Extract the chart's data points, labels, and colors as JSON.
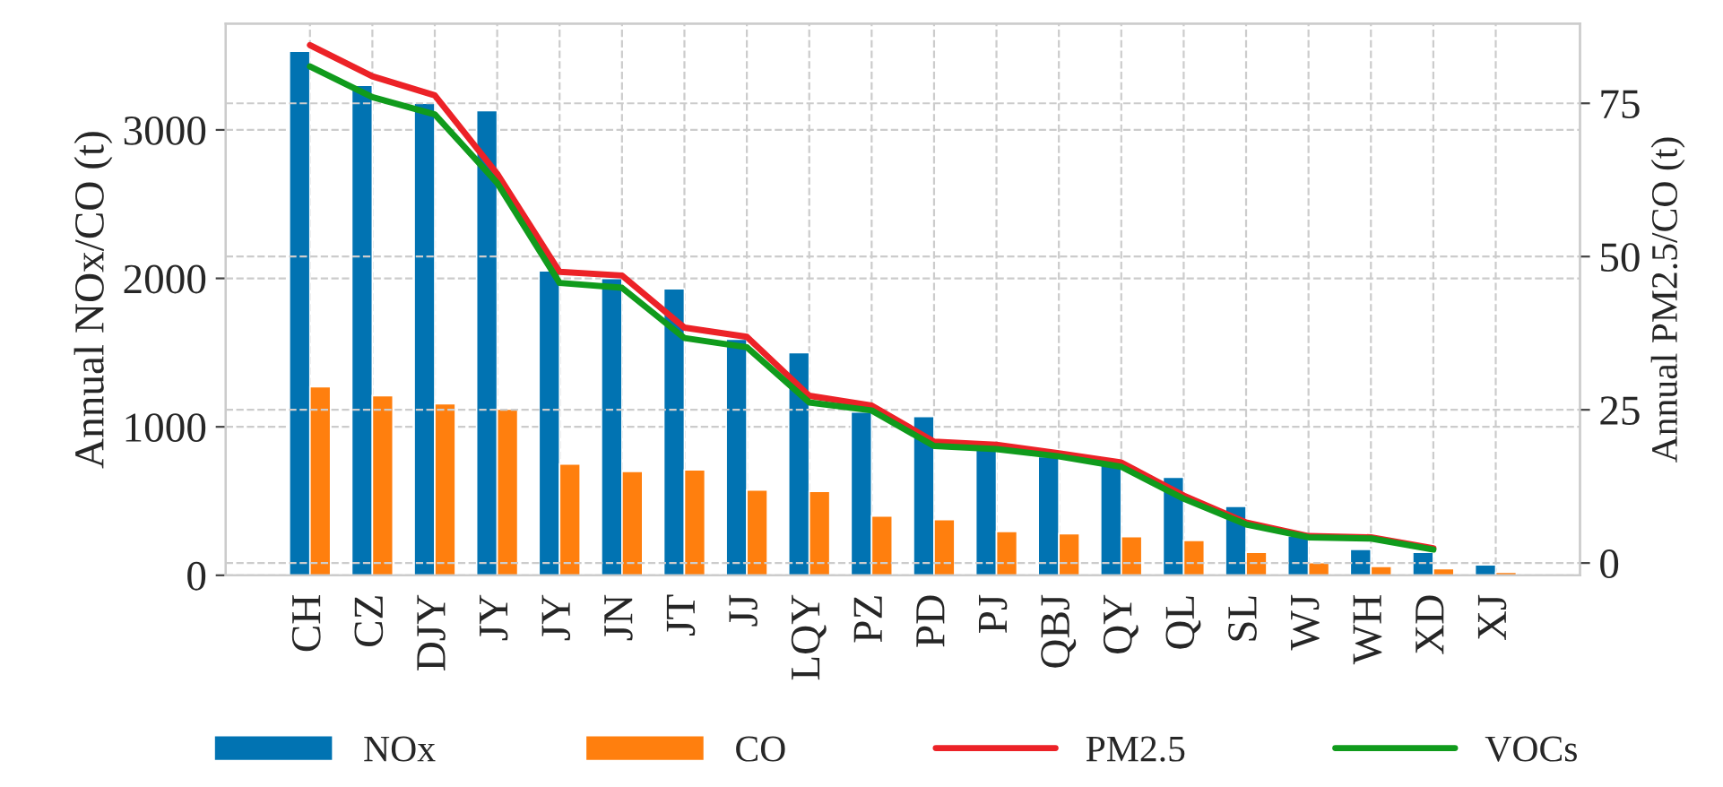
{
  "chart_data": {
    "type": "bar",
    "categories": [
      "CH",
      "CZ",
      "DJY",
      "JY",
      "JY",
      "JN",
      "JT",
      "JJ",
      "LQY",
      "PZ",
      "PD",
      "PJ",
      "QBJ",
      "QY",
      "QL",
      "SL",
      "WJ",
      "WH",
      "XD",
      "XJ"
    ],
    "series": [
      {
        "name": "NOx",
        "color": "#0173b2",
        "values": [
          3530,
          3300,
          3180,
          3130,
          2050,
          2000,
          1930,
          1590,
          1500,
          1100,
          1070,
          850,
          800,
          740,
          660,
          465,
          265,
          175,
          155,
          70
        ]
      },
      {
        "name": "CO",
        "color": "#ff7f0e",
        "values": [
          1270,
          1210,
          1155,
          1120,
          750,
          700,
          710,
          575,
          565,
          400,
          375,
          295,
          280,
          260,
          235,
          155,
          85,
          60,
          45,
          20
        ]
      },
      {
        "name": "PM2.5",
        "type": "line",
        "axis": "y2",
        "color": "#ec2227",
        "values": [
          84.5,
          79.4,
          76.3,
          63.5,
          47.5,
          46.9,
          38.4,
          36.9,
          27.3,
          25.7,
          19.8,
          19.3,
          17.9,
          16.4,
          11.0,
          6.6,
          4.4,
          4.2,
          2.4,
          null
        ]
      },
      {
        "name": "VOCs",
        "type": "line",
        "axis": "y2",
        "color": "#109b1c",
        "values": [
          81.0,
          76.0,
          73.2,
          62.0,
          45.7,
          44.9,
          36.7,
          35.2,
          26.2,
          24.9,
          19.1,
          18.6,
          17.4,
          15.7,
          10.5,
          6.3,
          4.2,
          4.0,
          2.2,
          null
        ]
      }
    ],
    "ylabel": "Annual NOx/CO (t)",
    "y2label": "Annual PM2.5/CO (t)",
    "ylim": [
      0,
      3716
    ],
    "yticks": [
      0,
      1000,
      2000,
      3000
    ],
    "y2lim": [
      -2,
      88
    ],
    "y2ticks": [
      0,
      25,
      50,
      75
    ],
    "grid": true,
    "legend": "bottom",
    "line_style": "solid"
  }
}
